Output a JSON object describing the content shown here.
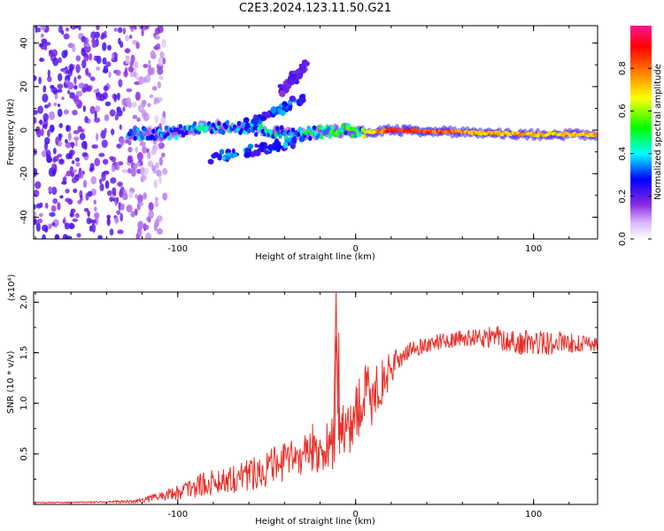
{
  "page": {
    "title": "C2E3.2024.123.11.50.G21"
  },
  "chart_data": [
    {
      "type": "heatmap",
      "title": "C2E3.2024.123.11.50.G21",
      "xlabel": "Height of straight line (km)",
      "ylabel": "Frequency (Hz)",
      "xlim": [
        -181,
        136
      ],
      "ylim": [
        -50,
        48
      ],
      "xticks": [
        -100,
        0,
        100
      ],
      "xtick_labels": [
        "-100",
        "0",
        "100"
      ],
      "yticks": [
        40,
        20,
        0,
        -20,
        -40
      ],
      "ytick_labels": [
        "40",
        "20",
        "0",
        "-20",
        "-40"
      ],
      "colorbar": {
        "label": "Normalized spectral amplitude",
        "range": [
          0,
          1
        ],
        "ticks": [
          0.0,
          0.2,
          0.4,
          0.6,
          0.8
        ],
        "tick_labels": [
          "0.0",
          "0.2",
          "0.4",
          "0.6",
          "0.8"
        ],
        "colormap": [
          "#ffffff",
          "#8a2be2",
          "#0000ff",
          "#00ffff",
          "#00ff00",
          "#ffff00",
          "#ff8000",
          "#ff0000",
          "#ff1493"
        ]
      },
      "features": {
        "noise_region_x": [
          -181,
          -115
        ],
        "main_ridge": [
          {
            "x": -128,
            "freq": -2,
            "amp": 0.35
          },
          {
            "x": -100,
            "freq": -1,
            "amp": 0.4
          },
          {
            "x": -85,
            "freq": 2,
            "amp": 0.45
          },
          {
            "x": -70,
            "freq": 1,
            "amp": 0.4
          },
          {
            "x": -50,
            "freq": 0,
            "amp": 0.45
          },
          {
            "x": -35,
            "freq": -2,
            "amp": 0.45
          },
          {
            "x": -20,
            "freq": -1,
            "amp": 0.5
          },
          {
            "x": -5,
            "freq": 0,
            "amp": 0.55
          },
          {
            "x": 5,
            "freq": -1,
            "amp": 0.6
          },
          {
            "x": 20,
            "freq": 0,
            "amp": 0.95
          },
          {
            "x": 40,
            "freq": -0.5,
            "amp": 0.9
          },
          {
            "x": 60,
            "freq": -1,
            "amp": 0.8
          },
          {
            "x": 80,
            "freq": -1.5,
            "amp": 0.78
          },
          {
            "x": 100,
            "freq": -2,
            "amp": 0.75
          },
          {
            "x": 120,
            "freq": -2,
            "amp": 0.75
          },
          {
            "x": 136,
            "freq": -2,
            "amp": 0.75
          }
        ],
        "side_branches": [
          {
            "from": [
              -60,
              3
            ],
            "to": [
              -28,
              15
            ],
            "amp": 0.3
          },
          {
            "from": [
              -80,
              -13
            ],
            "to": [
              -30,
              -5
            ],
            "amp": 0.3
          },
          {
            "from": [
              -42,
              18
            ],
            "to": [
              -28,
              30
            ],
            "amp": 0.15
          }
        ]
      }
    },
    {
      "type": "line",
      "xlabel": "Height of straight line (km)",
      "ylabel": "SNR (10 * v/v)",
      "y_multiplier": "(x10⁴)",
      "xlim": [
        -181,
        136
      ],
      "ylim": [
        0,
        2.1
      ],
      "xticks": [
        -100,
        0,
        100
      ],
      "xtick_labels": [
        "-100",
        "0",
        "100"
      ],
      "yticks": [
        0.5,
        1.0,
        1.5,
        2.0
      ],
      "ytick_labels": [
        "0.5",
        "1.0",
        "1.5",
        "2.0"
      ],
      "series": [
        {
          "name": "SNR",
          "color": "#e8302a",
          "x": [
            -181,
            -160,
            -140,
            -125,
            -115,
            -105,
            -95,
            -85,
            -75,
            -65,
            -55,
            -45,
            -35,
            -30,
            -25,
            -22,
            -18,
            -15,
            -12,
            -11,
            -9,
            -6,
            -3,
            0,
            3,
            6,
            9,
            12,
            15,
            20,
            25,
            30,
            40,
            50,
            60,
            70,
            80,
            90,
            100,
            110,
            120,
            130,
            136
          ],
          "mean": [
            0.02,
            0.02,
            0.025,
            0.03,
            0.06,
            0.1,
            0.15,
            0.2,
            0.24,
            0.28,
            0.33,
            0.38,
            0.45,
            0.5,
            0.55,
            0.55,
            0.55,
            0.58,
            0.62,
            1.7,
            0.65,
            0.7,
            0.8,
            0.9,
            1.0,
            1.05,
            1.1,
            1.15,
            1.2,
            1.35,
            1.45,
            1.52,
            1.58,
            1.62,
            1.64,
            1.65,
            1.65,
            1.6,
            1.6,
            1.6,
            1.6,
            1.58,
            1.6
          ],
          "noise": [
            0.005,
            0.005,
            0.01,
            0.015,
            0.04,
            0.06,
            0.1,
            0.12,
            0.14,
            0.16,
            0.17,
            0.2,
            0.2,
            0.22,
            0.25,
            0.25,
            0.25,
            0.25,
            0.3,
            0.3,
            0.35,
            0.3,
            0.3,
            0.3,
            0.35,
            0.35,
            0.35,
            0.3,
            0.25,
            0.15,
            0.1,
            0.08,
            0.08,
            0.08,
            0.08,
            0.1,
            0.12,
            0.12,
            0.13,
            0.13,
            0.1,
            0.08,
            0.08
          ]
        }
      ]
    }
  ]
}
